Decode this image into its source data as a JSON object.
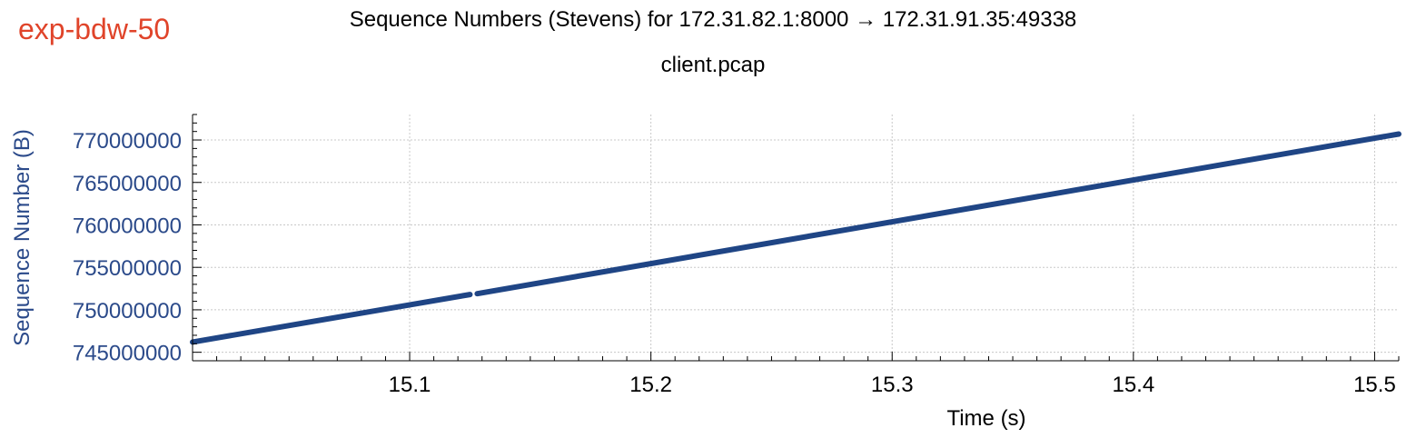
{
  "tag": "exp-bdw-50",
  "title": "Sequence Numbers (Stevens) for 172.31.82.1:8000 → 172.31.91.35:49338",
  "subtitle": "client.pcap",
  "colors": {
    "tag": "#e0442a",
    "series": "#1f4585",
    "axis_label": "#2b4a8a",
    "grid": "#c8c8c8"
  },
  "chart_data": {
    "type": "scatter",
    "xlabel": "Time (s)",
    "ylabel": "Sequence Number (B)",
    "xlim": [
      15.01,
      15.51
    ],
    "ylim": [
      744000000,
      773000000
    ],
    "xticks": [
      15.1,
      15.2,
      15.3,
      15.4,
      15.5
    ],
    "xtick_labels": [
      "15.1",
      "15.2",
      "15.3",
      "15.4",
      "15.5"
    ],
    "yticks": [
      745000000,
      750000000,
      755000000,
      760000000,
      765000000,
      770000000
    ],
    "ytick_labels": [
      "745000000",
      "750000000",
      "755000000",
      "760000000",
      "765000000",
      "770000000"
    ],
    "grid": true,
    "series": [
      {
        "segments": [
          {
            "x": [
              15.01,
              15.125
            ],
            "y": [
              746200000,
              751800000
            ]
          },
          {
            "x": [
              15.128,
              15.51
            ],
            "y": [
              751900000,
              770700000
            ]
          }
        ]
      }
    ]
  }
}
